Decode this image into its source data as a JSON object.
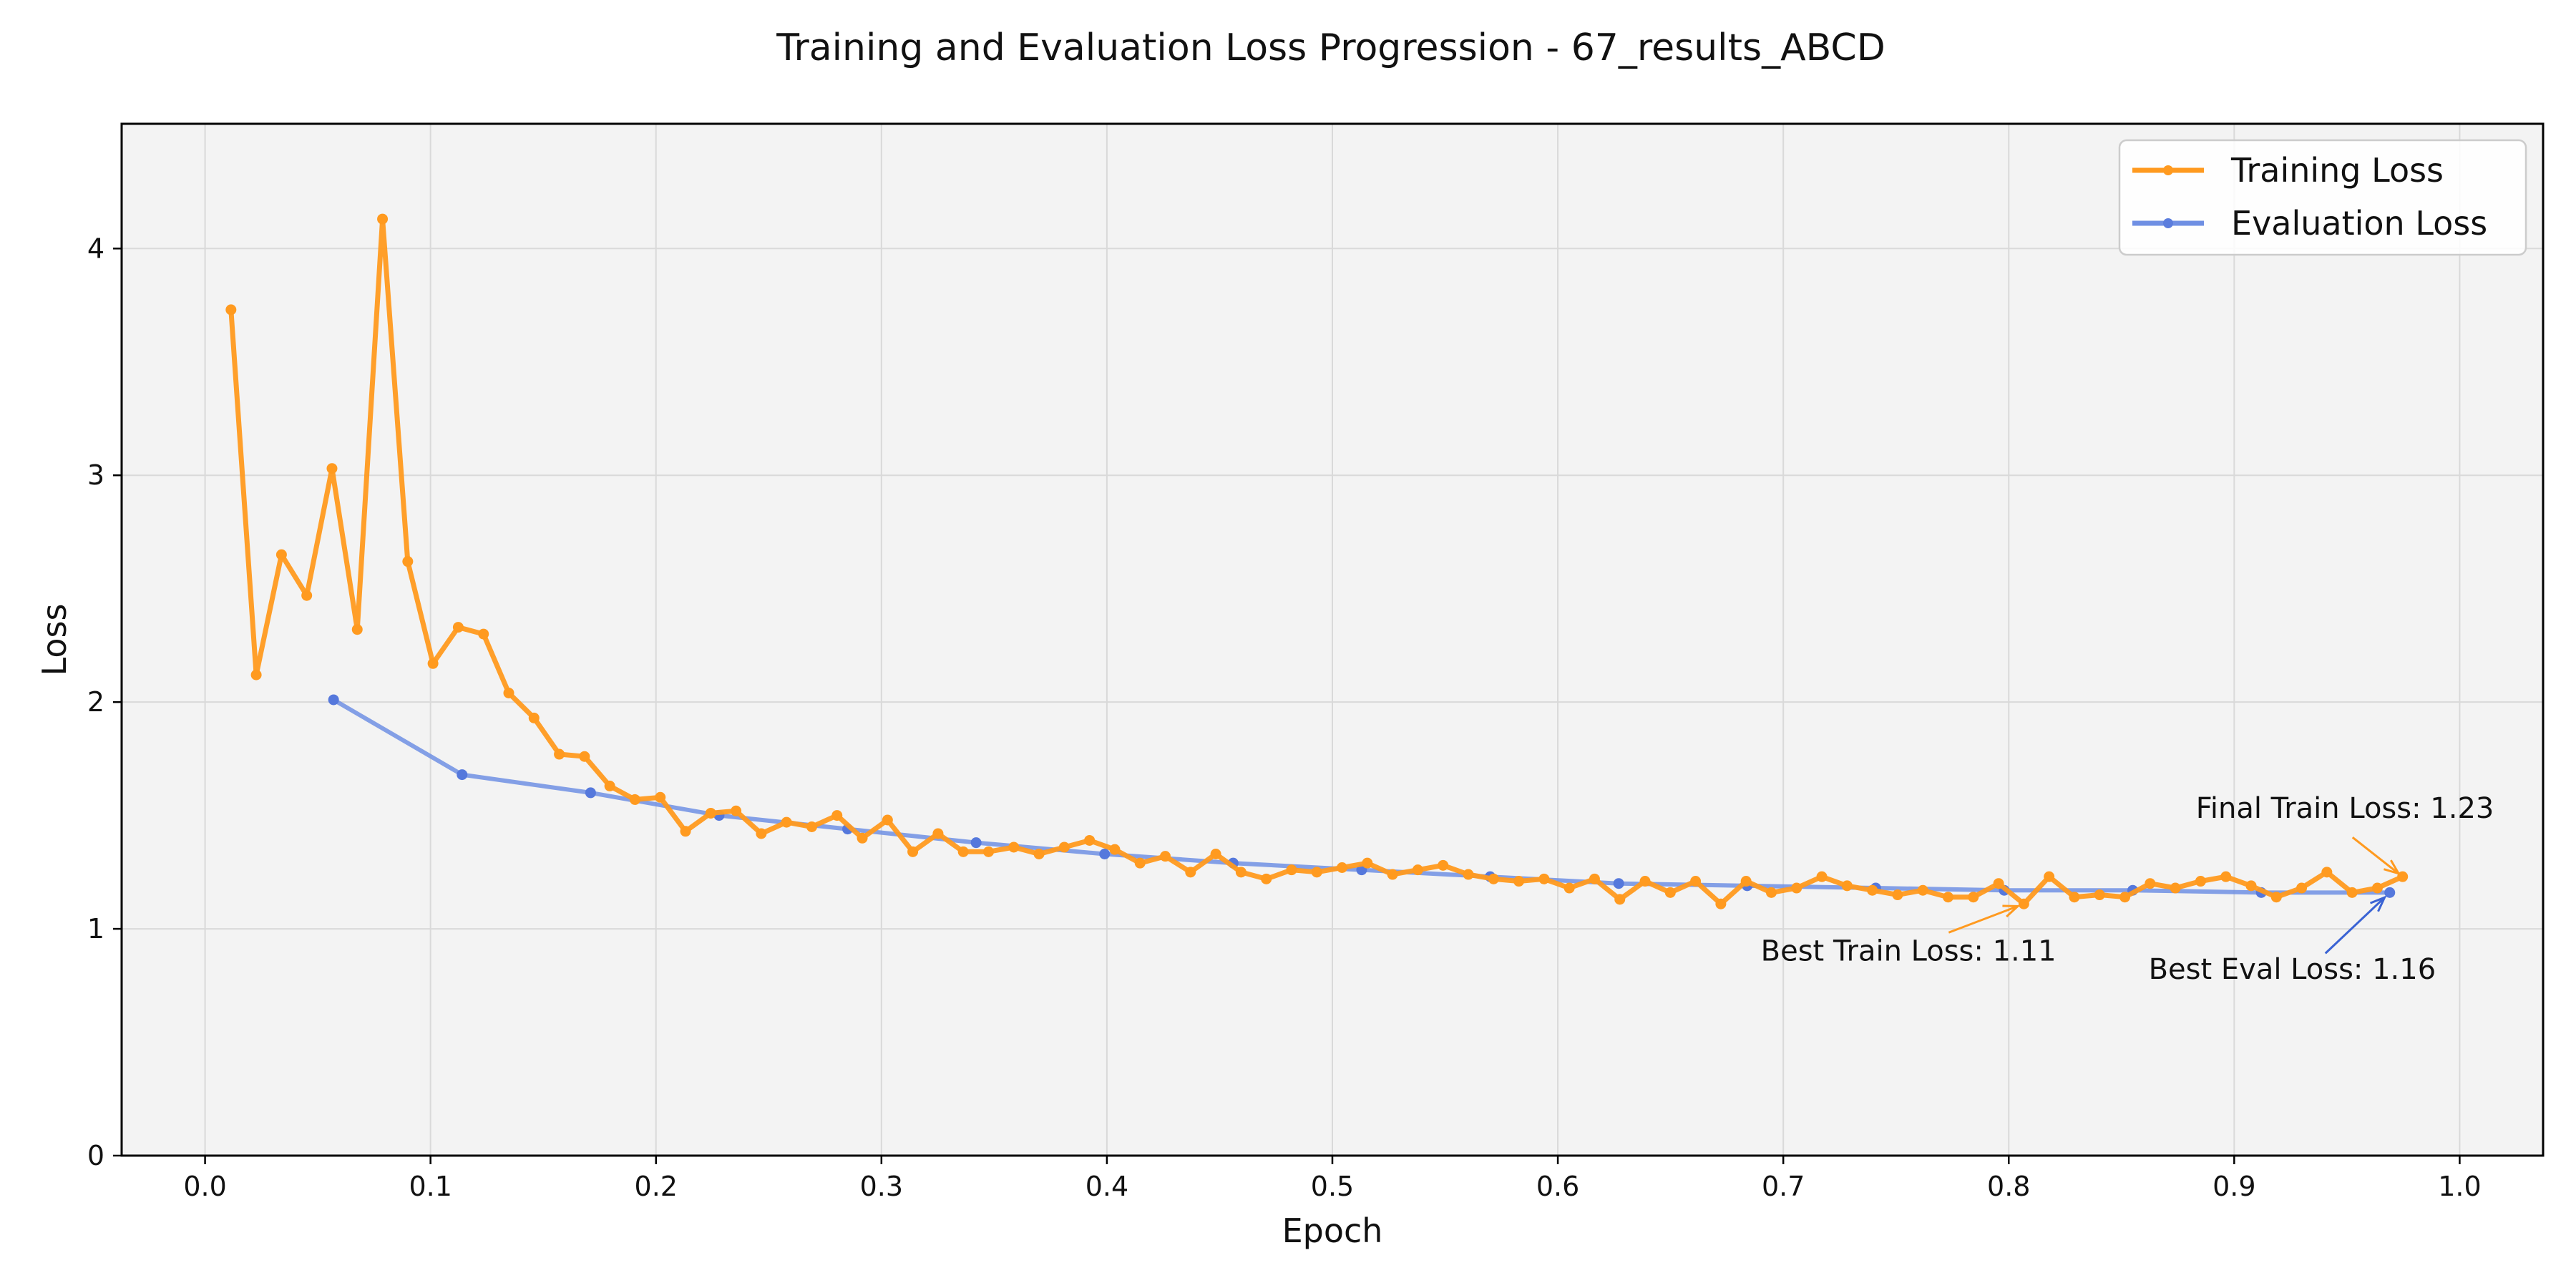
{
  "chart_data": {
    "type": "line",
    "title": "Training and Evaluation Loss Progression - 67_results_ABCD",
    "xlabel": "Epoch",
    "ylabel": "Loss",
    "xlim": [
      -0.037,
      1.037
    ],
    "ylim": [
      0,
      4.55
    ],
    "xticks": [
      0.0,
      0.1,
      0.2,
      0.3,
      0.4,
      0.5,
      0.6,
      0.7,
      0.8,
      0.9,
      1.0
    ],
    "xtick_labels": [
      "0.0",
      "0.1",
      "0.2",
      "0.3",
      "0.4",
      "0.5",
      "0.6",
      "0.7",
      "0.8",
      "0.9",
      "1.0"
    ],
    "yticks": [
      0,
      1,
      2,
      3,
      4
    ],
    "ytick_labels": [
      "0",
      "1",
      "2",
      "3",
      "4"
    ],
    "grid": true,
    "legend_position": "top-right",
    "series": [
      {
        "name": "Training Loss",
        "color": "#ff9a1f",
        "points": [
          [
            0.0115,
            3.73
          ],
          [
            0.0227,
            2.12
          ],
          [
            0.0339,
            2.65
          ],
          [
            0.0451,
            2.47
          ],
          [
            0.0563,
            3.03
          ],
          [
            0.0675,
            2.32
          ],
          [
            0.0787,
            4.13
          ],
          [
            0.0899,
            2.62
          ],
          [
            0.1011,
            2.17
          ],
          [
            0.1123,
            2.33
          ],
          [
            0.1235,
            2.3
          ],
          [
            0.1347,
            2.04
          ],
          [
            0.1459,
            1.93
          ],
          [
            0.1571,
            1.77
          ],
          [
            0.1683,
            1.76
          ],
          [
            0.1795,
            1.63
          ],
          [
            0.1907,
            1.57
          ],
          [
            0.2019,
            1.58
          ],
          [
            0.2131,
            1.43
          ],
          [
            0.2243,
            1.51
          ],
          [
            0.2355,
            1.52
          ],
          [
            0.2467,
            1.42
          ],
          [
            0.2579,
            1.47
          ],
          [
            0.2691,
            1.45
          ],
          [
            0.2803,
            1.5
          ],
          [
            0.2915,
            1.4
          ],
          [
            0.3027,
            1.48
          ],
          [
            0.3139,
            1.34
          ],
          [
            0.3251,
            1.42
          ],
          [
            0.3363,
            1.34
          ],
          [
            0.3475,
            1.34
          ],
          [
            0.3587,
            1.36
          ],
          [
            0.3699,
            1.33
          ],
          [
            0.3811,
            1.36
          ],
          [
            0.3923,
            1.39
          ],
          [
            0.4035,
            1.35
          ],
          [
            0.4147,
            1.29
          ],
          [
            0.4259,
            1.32
          ],
          [
            0.4371,
            1.25
          ],
          [
            0.4483,
            1.33
          ],
          [
            0.4595,
            1.25
          ],
          [
            0.4707,
            1.22
          ],
          [
            0.4819,
            1.26
          ],
          [
            0.4931,
            1.25
          ],
          [
            0.5043,
            1.27
          ],
          [
            0.5155,
            1.29
          ],
          [
            0.5267,
            1.24
          ],
          [
            0.5379,
            1.26
          ],
          [
            0.5491,
            1.28
          ],
          [
            0.5603,
            1.24
          ],
          [
            0.5715,
            1.22
          ],
          [
            0.5827,
            1.21
          ],
          [
            0.5939,
            1.22
          ],
          [
            0.6051,
            1.18
          ],
          [
            0.6163,
            1.22
          ],
          [
            0.6275,
            1.13
          ],
          [
            0.6387,
            1.21
          ],
          [
            0.6499,
            1.16
          ],
          [
            0.6611,
            1.21
          ],
          [
            0.6723,
            1.11
          ],
          [
            0.6835,
            1.21
          ],
          [
            0.6947,
            1.16
          ],
          [
            0.7059,
            1.18
          ],
          [
            0.7171,
            1.23
          ],
          [
            0.7283,
            1.19
          ],
          [
            0.7395,
            1.17
          ],
          [
            0.7507,
            1.15
          ],
          [
            0.7619,
            1.17
          ],
          [
            0.7731,
            1.14
          ],
          [
            0.7843,
            1.14
          ],
          [
            0.7955,
            1.2
          ],
          [
            0.8067,
            1.11
          ],
          [
            0.8179,
            1.23
          ],
          [
            0.8291,
            1.14
          ],
          [
            0.8403,
            1.15
          ],
          [
            0.8515,
            1.14
          ],
          [
            0.8627,
            1.2
          ],
          [
            0.8739,
            1.18
          ],
          [
            0.8851,
            1.21
          ],
          [
            0.8963,
            1.23
          ],
          [
            0.9075,
            1.19
          ],
          [
            0.9187,
            1.14
          ],
          [
            0.9299,
            1.18
          ],
          [
            0.9411,
            1.25
          ],
          [
            0.9523,
            1.16
          ],
          [
            0.9635,
            1.18
          ],
          [
            0.9747,
            1.23
          ]
        ]
      },
      {
        "name": "Evaluation Loss",
        "color": "#6f8fe3",
        "points": [
          [
            0.057,
            2.01
          ],
          [
            0.114,
            1.68
          ],
          [
            0.171,
            1.6
          ],
          [
            0.228,
            1.5
          ],
          [
            0.285,
            1.44
          ],
          [
            0.342,
            1.38
          ],
          [
            0.399,
            1.33
          ],
          [
            0.456,
            1.29
          ],
          [
            0.513,
            1.26
          ],
          [
            0.57,
            1.23
          ],
          [
            0.627,
            1.2
          ],
          [
            0.684,
            1.19
          ],
          [
            0.741,
            1.18
          ],
          [
            0.798,
            1.17
          ],
          [
            0.855,
            1.17
          ],
          [
            0.912,
            1.16
          ],
          [
            0.969,
            1.16
          ]
        ]
      }
    ],
    "annotations": [
      {
        "text": "Final Train Loss: 1.23",
        "x": 0.9747,
        "y": 1.23,
        "text_x": 0.883,
        "text_y": 1.49,
        "color": "#ff9a1f",
        "anchor": "start"
      },
      {
        "text": "Best Train Loss: 1.11",
        "x": 0.8067,
        "y": 1.11,
        "text_x": 0.69,
        "text_y": 0.86,
        "color": "#ff9a1f",
        "anchor": "start"
      },
      {
        "text": "Best Eval Loss: 1.16",
        "x": 0.969,
        "y": 1.16,
        "text_x": 0.862,
        "text_y": 0.78,
        "color": "#3a63d4",
        "anchor": "start"
      }
    ]
  }
}
